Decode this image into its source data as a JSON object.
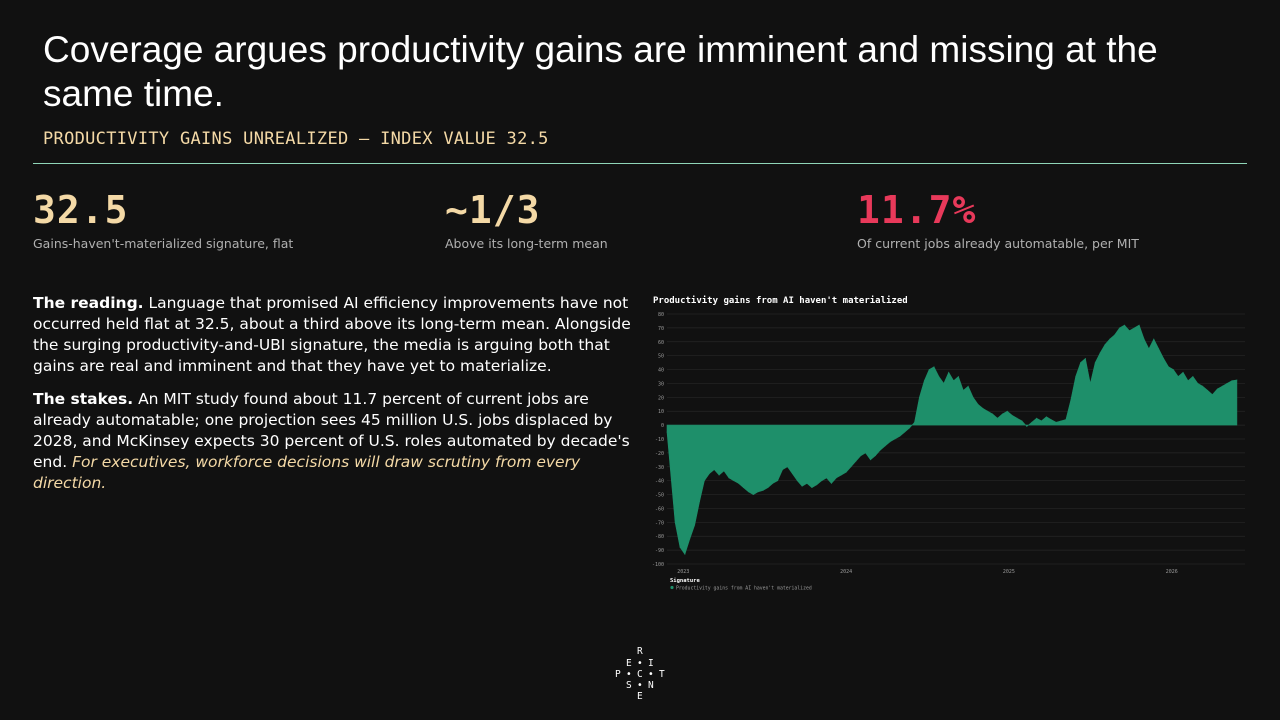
{
  "title": "Coverage argues productivity gains are imminent and missing at the same time.",
  "subtitle": "PRODUCTIVITY GAINS UNREALIZED — INDEX VALUE 32.5",
  "stats": [
    {
      "value": "32.5",
      "caption": "Gains-haven't-materialized signature, flat",
      "color": "#f4d9a6"
    },
    {
      "value": "~1/3",
      "caption": "Above its long-term mean",
      "color": "#f4d9a6"
    },
    {
      "value": "11.7%",
      "caption": "Of current jobs already automatable, per MIT",
      "color": "#e8395a"
    }
  ],
  "reading": {
    "lead": "The reading.",
    "text": " Language that promised AI efficiency improvements have not occurred held flat at 32.5, about a third above its long-term mean. Alongside the surging productivity-and-UBI signature, the media is arguing both that gains are real and imminent and that they have yet to materialize."
  },
  "stakes": {
    "lead": "The stakes.",
    "text": " An MIT study found about 11.7 percent of current jobs are already automatable; one projection sees 45 million U.S. jobs displaced by 2028, and McKinsey expects 30 percent of U.S. roles automated by decade's end. ",
    "italic": "For executives, workforce decisions will draw scrutiny from every direction."
  },
  "logo_letters": [
    "R",
    "E",
    "I",
    "P",
    "C",
    "T",
    "S",
    "N",
    "E"
  ],
  "colors": {
    "area": "#1e8f6a",
    "rule": "#8fd6b8",
    "accent": "#f4d9a6",
    "red": "#e8395a"
  },
  "chart_data": {
    "type": "area",
    "title": "Productivity gains from AI haven't materialized",
    "ylim": [
      -100,
      80
    ],
    "yticks": [
      80,
      70,
      60,
      50,
      40,
      30,
      20,
      10,
      0,
      -10,
      -20,
      -30,
      -40,
      -50,
      -60,
      -70,
      -80,
      -90,
      -100
    ],
    "xticks": [
      {
        "t": 2023.05,
        "label": "2023"
      },
      {
        "t": 2024.05,
        "label": "2024"
      },
      {
        "t": 2025.05,
        "label": "2025"
      },
      {
        "t": 2026.05,
        "label": "2026"
      }
    ],
    "xlim": [
      2022.95,
      2026.5
    ],
    "legend_title": "Signature",
    "grid": true,
    "series": [
      {
        "name": "Productivity gains from AI haven't materialized",
        "color": "#1e8f6a",
        "points": [
          [
            2022.95,
            -5
          ],
          [
            2023.0,
            -70
          ],
          [
            2023.03,
            -88
          ],
          [
            2023.06,
            -93
          ],
          [
            2023.09,
            -82
          ],
          [
            2023.12,
            -72
          ],
          [
            2023.15,
            -55
          ],
          [
            2023.18,
            -40
          ],
          [
            2023.21,
            -35
          ],
          [
            2023.24,
            -32
          ],
          [
            2023.27,
            -36
          ],
          [
            2023.3,
            -33
          ],
          [
            2023.33,
            -38
          ],
          [
            2023.36,
            -40
          ],
          [
            2023.39,
            -42
          ],
          [
            2023.42,
            -45
          ],
          [
            2023.45,
            -48
          ],
          [
            2023.48,
            -50
          ],
          [
            2023.51,
            -48
          ],
          [
            2023.54,
            -47
          ],
          [
            2023.57,
            -45
          ],
          [
            2023.6,
            -42
          ],
          [
            2023.63,
            -40
          ],
          [
            2023.66,
            -32
          ],
          [
            2023.69,
            -30
          ],
          [
            2023.72,
            -35
          ],
          [
            2023.75,
            -40
          ],
          [
            2023.78,
            -44
          ],
          [
            2023.81,
            -42
          ],
          [
            2023.84,
            -45
          ],
          [
            2023.87,
            -43
          ],
          [
            2023.9,
            -40
          ],
          [
            2023.93,
            -38
          ],
          [
            2023.96,
            -42
          ],
          [
            2023.99,
            -38
          ],
          [
            2024.02,
            -36
          ],
          [
            2024.05,
            -34
          ],
          [
            2024.08,
            -30
          ],
          [
            2024.11,
            -26
          ],
          [
            2024.14,
            -22
          ],
          [
            2024.17,
            -20
          ],
          [
            2024.2,
            -25
          ],
          [
            2024.23,
            -22
          ],
          [
            2024.26,
            -18
          ],
          [
            2024.29,
            -15
          ],
          [
            2024.32,
            -12
          ],
          [
            2024.35,
            -10
          ],
          [
            2024.38,
            -8
          ],
          [
            2024.41,
            -5
          ],
          [
            2024.44,
            -2
          ],
          [
            2024.47,
            2
          ],
          [
            2024.5,
            20
          ],
          [
            2024.53,
            32
          ],
          [
            2024.56,
            40
          ],
          [
            2024.59,
            42
          ],
          [
            2024.62,
            35
          ],
          [
            2024.65,
            30
          ],
          [
            2024.68,
            38
          ],
          [
            2024.71,
            32
          ],
          [
            2024.74,
            35
          ],
          [
            2024.77,
            25
          ],
          [
            2024.8,
            28
          ],
          [
            2024.83,
            20
          ],
          [
            2024.86,
            15
          ],
          [
            2024.89,
            12
          ],
          [
            2024.92,
            10
          ],
          [
            2024.95,
            8
          ],
          [
            2024.98,
            5
          ],
          [
            2025.01,
            8
          ],
          [
            2025.04,
            10
          ],
          [
            2025.07,
            7
          ],
          [
            2025.1,
            5
          ],
          [
            2025.13,
            3
          ],
          [
            2025.16,
            -1
          ],
          [
            2025.19,
            2
          ],
          [
            2025.22,
            5
          ],
          [
            2025.25,
            3
          ],
          [
            2025.28,
            6
          ],
          [
            2025.31,
            4
          ],
          [
            2025.34,
            2
          ],
          [
            2025.37,
            3
          ],
          [
            2025.4,
            4
          ],
          [
            2025.43,
            18
          ],
          [
            2025.46,
            35
          ],
          [
            2025.49,
            45
          ],
          [
            2025.52,
            48
          ],
          [
            2025.55,
            30
          ],
          [
            2025.58,
            45
          ],
          [
            2025.61,
            52
          ],
          [
            2025.64,
            58
          ],
          [
            2025.67,
            62
          ],
          [
            2025.7,
            65
          ],
          [
            2025.73,
            70
          ],
          [
            2025.76,
            72
          ],
          [
            2025.79,
            68
          ],
          [
            2025.82,
            70
          ],
          [
            2025.85,
            72
          ],
          [
            2025.88,
            62
          ],
          [
            2025.91,
            55
          ],
          [
            2025.94,
            62
          ],
          [
            2025.97,
            55
          ],
          [
            2026.0,
            48
          ],
          [
            2026.03,
            42
          ],
          [
            2026.06,
            40
          ],
          [
            2026.09,
            35
          ],
          [
            2026.12,
            38
          ],
          [
            2026.15,
            32
          ],
          [
            2026.18,
            35
          ],
          [
            2026.21,
            30
          ],
          [
            2026.24,
            28
          ],
          [
            2026.27,
            25
          ],
          [
            2026.3,
            22
          ],
          [
            2026.33,
            26
          ],
          [
            2026.36,
            28
          ],
          [
            2026.39,
            30
          ],
          [
            2026.42,
            32
          ],
          [
            2026.45,
            32.5
          ]
        ]
      }
    ]
  }
}
